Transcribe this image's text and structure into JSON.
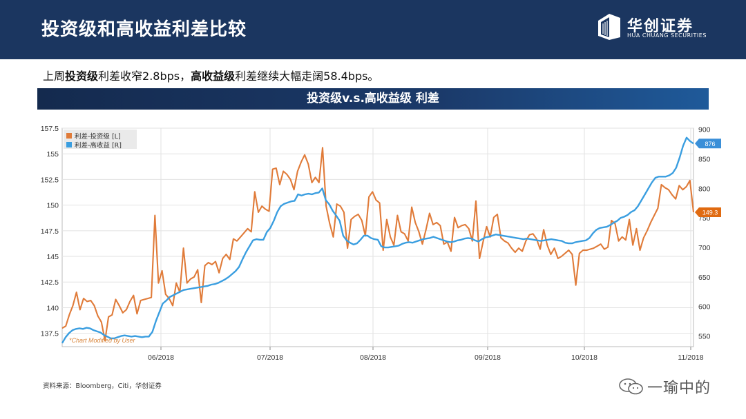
{
  "header": {
    "title": "投资级和高收益利差比较"
  },
  "logo": {
    "name": "华创证券",
    "sub": "HUA CHUANG SECURITIES"
  },
  "summary": {
    "p1": "上周",
    "b1": "投资级",
    "p2": "利差收窄2.8bps，",
    "b2": "高收益级",
    "p3": "利差继续大幅走阔58.4bps。"
  },
  "banner": {
    "title": "投资级v.s.高收益级 利差"
  },
  "source": "资料来源：Bloomberg，Citi，华创证券",
  "watermark": {
    "text": "一瑜中的"
  },
  "colors": {
    "header": "#1b3660",
    "ig": "#e07b39",
    "hy": "#3a9ee0",
    "last_ig": "#e06a10",
    "last_hy": "#3a8fd8"
  },
  "chart_data": {
    "type": "line",
    "x_labels": [
      "06/2018",
      "07/2018",
      "08/2018",
      "09/2018",
      "10/2018",
      "11/2018"
    ],
    "annotation": "*Chart Modified by User",
    "left_axis": {
      "ticks": [
        "137.5",
        "140",
        "142.5",
        "145",
        "147.5",
        "150",
        "152.5",
        "155",
        "157.5"
      ],
      "ylim": [
        136.2,
        157.5
      ]
    },
    "right_axis": {
      "ticks": [
        "550",
        "600",
        "650",
        "700",
        "750",
        "800",
        "850",
        "900"
      ],
      "ylim": [
        532,
        902
      ]
    },
    "series": [
      {
        "name": "利差-投资级 [L]",
        "axis": "left",
        "last_label": "149.3",
        "values": [
          138,
          138.2,
          139.3,
          140.2,
          141.5,
          139.8,
          140.9,
          140.6,
          140.7,
          140.2,
          139.2,
          138.6,
          136.8,
          139.1,
          139.3,
          140.8,
          140.2,
          139.5,
          139.8,
          140.6,
          141.2,
          139.4,
          140.7,
          140.8,
          140.9,
          141.0,
          149.0,
          142.4,
          143.6,
          141.3,
          140.9,
          140.2,
          142.4,
          141.5,
          145.8,
          142.4,
          142.8,
          143.0,
          143.7,
          140.5,
          144.1,
          144.4,
          144.2,
          144.5,
          143.4,
          144.8,
          145.2,
          144.7,
          146.7,
          146.5,
          146.9,
          147.3,
          147.7,
          147.4,
          151.3,
          149.3,
          149.9,
          149.6,
          149.4,
          153.5,
          153.6,
          152.0,
          153.3,
          153.0,
          152.5,
          151.5,
          153.3,
          154.2,
          154.9,
          154.0,
          152.2,
          152.7,
          152.2,
          155.6,
          149.9,
          148.2,
          146.9,
          150.1,
          149.9,
          149.3,
          145.8,
          148.6,
          148.9,
          149.1,
          148.5,
          147.0,
          150.8,
          151.3,
          150.5,
          150.2,
          145.6,
          148.6,
          146.9,
          146.1,
          149.0,
          147.4,
          147.2,
          146.5,
          149.8,
          148.3,
          147.4,
          146.2,
          147.6,
          149.2,
          148.1,
          148.3,
          148.0,
          146.2,
          146.4,
          145.5,
          148.8,
          147.8,
          148.0,
          148.1,
          147.7,
          146.5,
          150.4,
          144.8,
          146.4,
          147.9,
          146.9,
          148.8,
          149.1,
          146.8,
          146.5,
          146.3,
          145.8,
          145.4,
          145.8,
          145.5,
          146.5,
          147.1,
          147.2,
          146.7,
          145.7,
          147.6,
          146.1,
          145.2,
          145.8,
          144.8,
          145.0,
          145.3,
          145.6,
          145.2,
          142.2,
          145.3,
          145.6,
          145.6,
          145.7,
          145.8,
          146.0,
          146.2,
          145.7,
          145.9,
          148.5,
          148.2,
          146.5,
          146.9,
          146.6,
          148.6,
          146.1,
          147.7,
          145.6,
          146.8,
          147.5,
          148.3,
          149.0,
          149.7,
          152.0,
          151.7,
          151.5,
          151.0,
          150.6,
          151.9,
          151.5,
          151.8,
          152.4,
          149.3
        ]
      },
      {
        "name": "利差-高收益 [R]",
        "axis": "right",
        "last_label": "876",
        "values": [
          538,
          548,
          555,
          560,
          562,
          563,
          562,
          564,
          563,
          560,
          558,
          556,
          552,
          549,
          546,
          546,
          548,
          550,
          551,
          550,
          549,
          550,
          549,
          548,
          549,
          549,
          557,
          575,
          590,
          605,
          610,
          616,
          619,
          622,
          625,
          628,
          629,
          630,
          631,
          632,
          633,
          634,
          635,
          637,
          638,
          640,
          643,
          646,
          650,
          655,
          660,
          667,
          680,
          692,
          702,
          712,
          714,
          713,
          713,
          726,
          733,
          745,
          760,
          770,
          774,
          776,
          778,
          779,
          790,
          788,
          790,
          791,
          790,
          792,
          793,
          800,
          780,
          773,
          762,
          754,
          745,
          720,
          712,
          708,
          705,
          707,
          713,
          720,
          720,
          716,
          714,
          713,
          702,
          700,
          700,
          701,
          702,
          703,
          706,
          708,
          709,
          708,
          710,
          712,
          714,
          715,
          716,
          718,
          716,
          714,
          712,
          710,
          709,
          710,
          712,
          713,
          715,
          716,
          715,
          712,
          710,
          714,
          717,
          718,
          720,
          722,
          721,
          720,
          719,
          718,
          717,
          716,
          715,
          714,
          715,
          714,
          713,
          712,
          711,
          712,
          713,
          714,
          713,
          712,
          711,
          708,
          707,
          707,
          709,
          710,
          711,
          712,
          716,
          724,
          730,
          733,
          734,
          735,
          738,
          742,
          745,
          750,
          752,
          755,
          760,
          763,
          770,
          780,
          790,
          800,
          810,
          818,
          820,
          820,
          820,
          822,
          826,
          835,
          852,
          872,
          886,
          880,
          876
        ]
      }
    ]
  }
}
